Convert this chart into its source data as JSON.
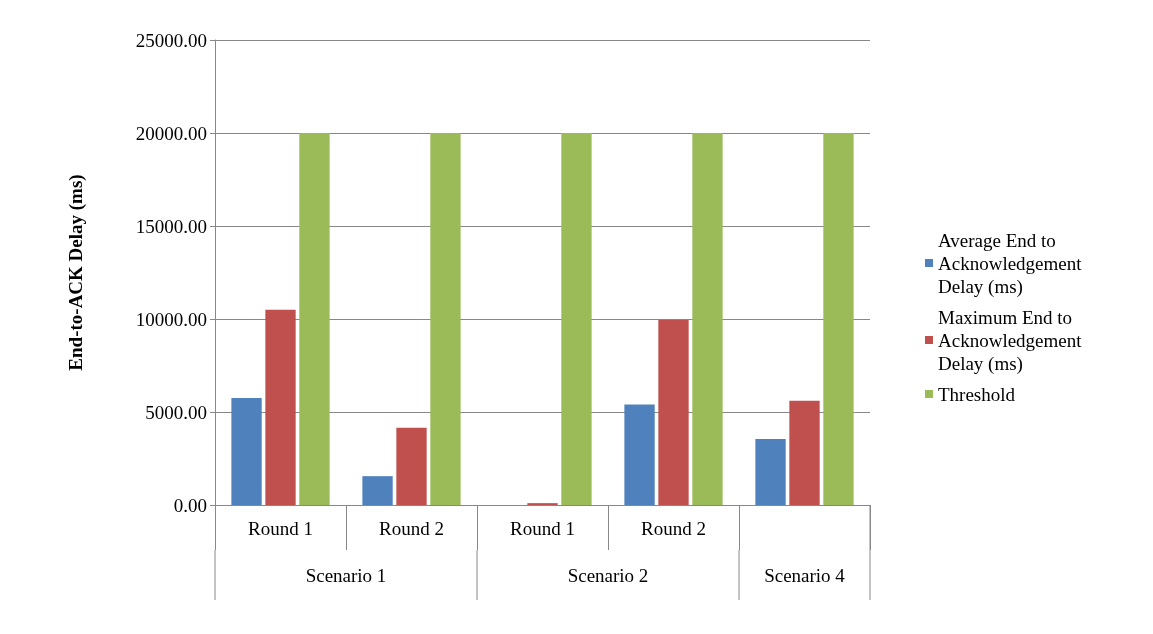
{
  "chart_data": {
    "type": "bar",
    "ylabel": "End-to-ACK Delay (ms)",
    "categories": [
      "Round 1",
      "Round 2",
      "Round 1",
      "Round 2",
      null
    ],
    "annotations": [
      "Scenario 1",
      "Scenario 2",
      "Scenario 4"
    ],
    "series": [
      {
        "name": "Average End to Acknowledgement Delay (ms)",
        "color": "#4f81bd",
        "values": [
          5750,
          1550,
          0,
          5400,
          3550
        ]
      },
      {
        "name": "Maximum End to Acknowledgement Delay (ms)",
        "color": "#c0504d",
        "values": [
          10500,
          4150,
          100,
          9950,
          5600
        ]
      },
      {
        "name": "Threshold",
        "color": "#9bbb59",
        "values": [
          20000,
          20000,
          20000,
          20000,
          20000
        ]
      }
    ],
    "ylim": [
      0,
      25000
    ],
    "yticks": [
      {
        "value": 0,
        "label": "0.00"
      },
      {
        "value": 5000,
        "label": "5000.00"
      },
      {
        "value": 10000,
        "label": "10000.00"
      },
      {
        "value": 15000,
        "label": "15000.00"
      },
      {
        "value": 20000,
        "label": "20000.00"
      },
      {
        "value": 25000,
        "label": "25000.00"
      }
    ],
    "grid": "y",
    "legend": "right"
  }
}
